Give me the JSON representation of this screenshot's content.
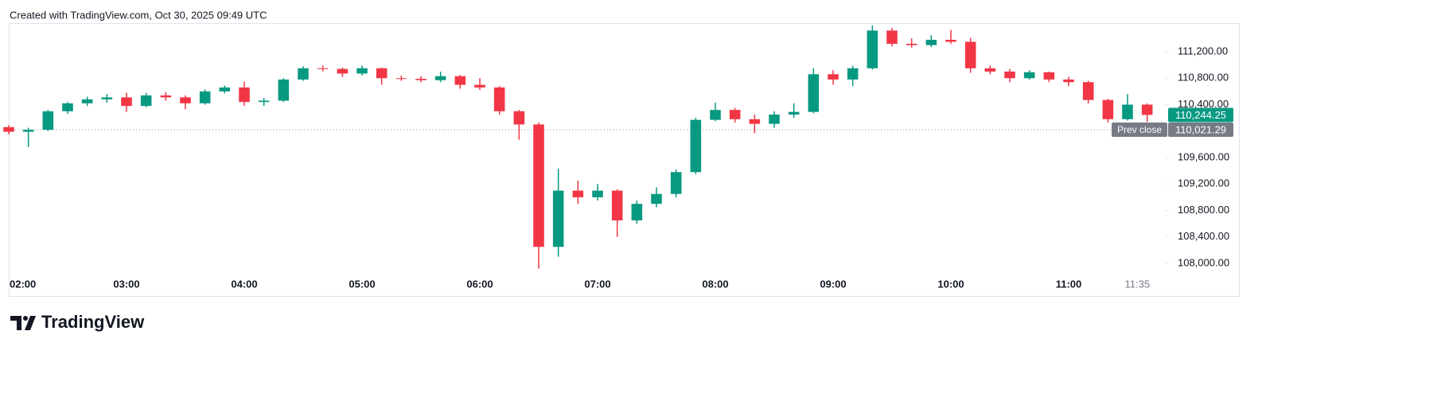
{
  "header": {
    "title": "Created with TradingView.com, Oct 30, 2025 09:49 UTC"
  },
  "footer": {
    "logo_text": "TradingView"
  },
  "chart_data": {
    "type": "candlestick",
    "up_color": "#089981",
    "down_color": "#f23645",
    "x": [
      "02:00",
      "02:10",
      "02:20",
      "02:30",
      "02:40",
      "02:50",
      "03:00",
      "03:10",
      "03:20",
      "03:30",
      "03:40",
      "03:50",
      "04:00",
      "04:10",
      "04:20",
      "04:30",
      "04:40",
      "04:50",
      "05:00",
      "05:10",
      "05:20",
      "05:30",
      "05:40",
      "05:50",
      "06:00",
      "06:10",
      "06:20",
      "06:30",
      "06:40",
      "06:50",
      "07:00",
      "07:10",
      "07:20",
      "07:30",
      "07:40",
      "07:50",
      "08:00",
      "08:10",
      "08:20",
      "08:30",
      "08:40",
      "08:50",
      "09:00",
      "09:10",
      "09:20",
      "09:30",
      "09:40",
      "09:50",
      "10:00",
      "10:10",
      "10:20",
      "10:30",
      "10:40",
      "10:50",
      "11:00",
      "11:10",
      "11:20",
      "11:30",
      "11:40"
    ],
    "open": [
      110060,
      109990,
      110020,
      110300,
      110420,
      110480,
      110510,
      110380,
      110540,
      110510,
      110420,
      110600,
      110660,
      110440,
      110460,
      110780,
      110950,
      110940,
      110870,
      110950,
      110800,
      110790,
      110770,
      110830,
      110700,
      110660,
      110300,
      110100,
      108250,
      109100,
      109000,
      109100,
      108650,
      108900,
      109050,
      109380,
      110170,
      110320,
      110180,
      110110,
      110250,
      110290,
      110860,
      110780,
      110950,
      111520,
      111320,
      111300,
      111380,
      111350,
      110950,
      110900,
      110800,
      110890,
      110780,
      110740,
      110470,
      110180,
      110400
    ],
    "high": [
      110090,
      110050,
      110320,
      110440,
      110520,
      110560,
      110580,
      110580,
      110590,
      110540,
      110630,
      110690,
      110750,
      110500,
      110800,
      110980,
      110990,
      110960,
      110990,
      110960,
      110840,
      110830,
      110900,
      110850,
      110800,
      110680,
      110320,
      110130,
      109430,
      109250,
      109200,
      109120,
      108950,
      109150,
      109420,
      110200,
      110430,
      110350,
      110250,
      110300,
      110420,
      110950,
      110920,
      110990,
      111600,
      111560,
      111400,
      111450,
      111530,
      111410,
      110990,
      110940,
      110920,
      110900,
      110820,
      110760,
      110490,
      110560,
      110420
    ],
    "low": [
      109950,
      109760,
      110000,
      110260,
      110380,
      110430,
      110290,
      110360,
      110460,
      110330,
      110400,
      110570,
      110380,
      110380,
      110440,
      110760,
      110900,
      110820,
      110840,
      110700,
      110760,
      110740,
      110740,
      110640,
      110620,
      110250,
      109870,
      107920,
      108100,
      108900,
      108950,
      108400,
      108600,
      108850,
      109000,
      109350,
      110150,
      110130,
      109970,
      110050,
      110200,
      110270,
      110700,
      110680,
      110930,
      111280,
      111260,
      111270,
      111320,
      110880,
      110860,
      110740,
      110780,
      110740,
      110680,
      110420,
      110130,
      110160,
      110140
    ],
    "close": [
      109990,
      110020,
      110300,
      110420,
      110480,
      110510,
      110380,
      110540,
      110510,
      110420,
      110600,
      110660,
      110440,
      110460,
      110780,
      110950,
      110940,
      110870,
      110950,
      110800,
      110790,
      110770,
      110830,
      110700,
      110660,
      110300,
      110100,
      108250,
      109100,
      109000,
      109100,
      108650,
      108900,
      109050,
      109380,
      110170,
      110320,
      110180,
      110110,
      110250,
      110290,
      110860,
      110780,
      110950,
      111520,
      111320,
      111300,
      111380,
      111350,
      110950,
      110900,
      110800,
      110890,
      110780,
      110740,
      110470,
      110180,
      110400,
      110244.25
    ],
    "xticks": [
      "02:00",
      "03:00",
      "04:00",
      "05:00",
      "06:00",
      "07:00",
      "08:00",
      "09:00",
      "10:00",
      "11:00",
      "11:35"
    ],
    "ylim": [
      107832,
      111621
    ],
    "yticks": [
      {
        "value": 108000,
        "label": "108,000.00"
      },
      {
        "value": 108400,
        "label": "108,400.00"
      },
      {
        "value": 108800,
        "label": "108,800.00"
      },
      {
        "value": 109200,
        "label": "109,200.00"
      },
      {
        "value": 109600,
        "label": "109,600.00"
      },
      {
        "value": 110000,
        "label": "110,000.00"
      },
      {
        "value": 110400,
        "label": "110,400.00"
      },
      {
        "value": 110800,
        "label": "110,800.00"
      },
      {
        "value": 111200,
        "label": "111,200.00"
      }
    ],
    "last_price": {
      "value": 110244.25,
      "label": "110,244.25",
      "color": "#089981"
    },
    "prev_close": {
      "value": 110021.29,
      "label": "110,021.29",
      "name": "Prev close",
      "color": "#787b86"
    }
  }
}
